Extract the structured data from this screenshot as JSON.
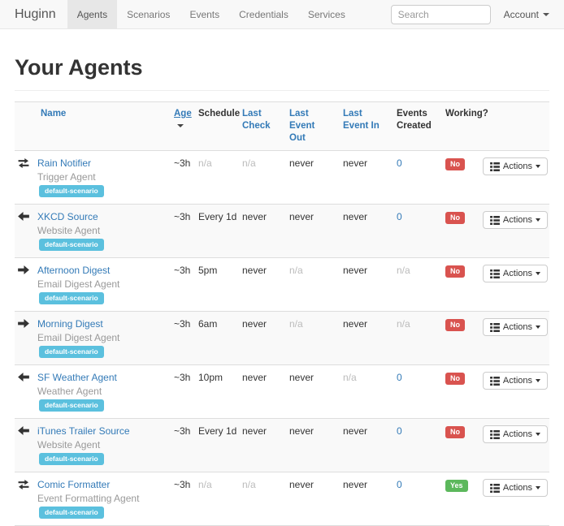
{
  "navbar": {
    "brand": "Huginn",
    "items": [
      {
        "label": "Agents",
        "active": true
      },
      {
        "label": "Scenarios",
        "active": false
      },
      {
        "label": "Events",
        "active": false
      },
      {
        "label": "Credentials",
        "active": false
      },
      {
        "label": "Services",
        "active": false
      }
    ],
    "search": {
      "placeholder": "Search"
    },
    "account": {
      "label": "Account"
    }
  },
  "page": {
    "title": "Your Agents"
  },
  "table": {
    "headers": {
      "name": "Name",
      "age": "Age",
      "schedule": "Schedule",
      "last_check": "Last Check",
      "last_event_out": "Last Event Out",
      "last_event_in": "Last Event In",
      "events_created": "Events Created",
      "working": "Working?"
    },
    "sorted_by": "age",
    "actions_label": "Actions",
    "rows": [
      {
        "icon": "transfer",
        "name": "Rain Notifier",
        "type": "Trigger Agent",
        "scenario": "default-scenario",
        "age": "~3h",
        "schedule": "n/a",
        "last_check": "n/a",
        "last_event_out": "never",
        "last_event_in": "never",
        "events_created": "0",
        "working": "No"
      },
      {
        "icon": "arrow-left",
        "name": "XKCD Source",
        "type": "Website Agent",
        "scenario": "default-scenario",
        "age": "~3h",
        "schedule": "Every 1d",
        "last_check": "never",
        "last_event_out": "never",
        "last_event_in": "never",
        "events_created": "0",
        "working": "No"
      },
      {
        "icon": "arrow-right",
        "name": "Afternoon Digest",
        "type": "Email Digest Agent",
        "scenario": "default-scenario",
        "age": "~3h",
        "schedule": "5pm",
        "last_check": "never",
        "last_event_out": "n/a",
        "last_event_in": "never",
        "events_created": "n/a",
        "working": "No"
      },
      {
        "icon": "arrow-right",
        "name": "Morning Digest",
        "type": "Email Digest Agent",
        "scenario": "default-scenario",
        "age": "~3h",
        "schedule": "6am",
        "last_check": "never",
        "last_event_out": "n/a",
        "last_event_in": "never",
        "events_created": "n/a",
        "working": "No"
      },
      {
        "icon": "arrow-left",
        "name": "SF Weather Agent",
        "type": "Weather Agent",
        "scenario": "default-scenario",
        "age": "~3h",
        "schedule": "10pm",
        "last_check": "never",
        "last_event_out": "never",
        "last_event_in": "n/a",
        "events_created": "0",
        "working": "No"
      },
      {
        "icon": "arrow-left",
        "name": "iTunes Trailer Source",
        "type": "Website Agent",
        "scenario": "default-scenario",
        "age": "~3h",
        "schedule": "Every 1d",
        "last_check": "never",
        "last_event_out": "never",
        "last_event_in": "never",
        "events_created": "0",
        "working": "No"
      },
      {
        "icon": "transfer",
        "name": "Comic Formatter",
        "type": "Event Formatting Agent",
        "scenario": "default-scenario",
        "age": "~3h",
        "schedule": "n/a",
        "last_check": "n/a",
        "last_event_out": "never",
        "last_event_in": "never",
        "events_created": "0",
        "working": "Yes"
      }
    ]
  },
  "colors": {
    "link_blue": "#337ab7",
    "scenario_badge": "#5bc0de",
    "working_no": "#d9534f",
    "working_yes": "#5cb85c",
    "navbar_bg": "#f8f8f8"
  }
}
